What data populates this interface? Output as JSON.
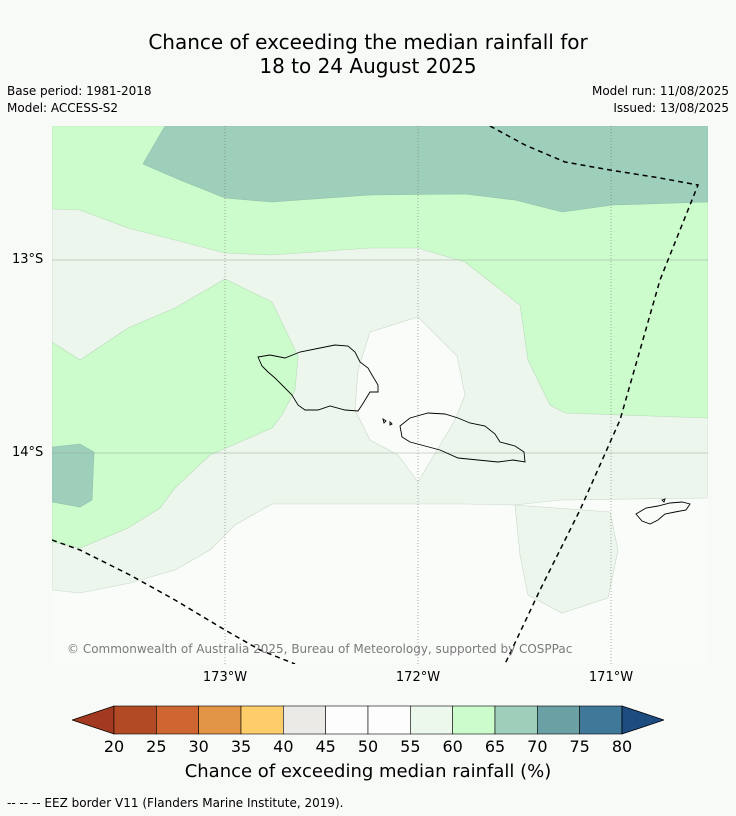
{
  "title": {
    "line1": "Chance of exceeding the median rainfall for",
    "line2": "18 to 24 August 2025"
  },
  "meta": {
    "base_period": "Base period: 1981-2018",
    "model": "Model: ACCESS-S2",
    "model_run": "Model run: 11/08/2025",
    "issued": "Issued: 13/08/2025"
  },
  "map": {
    "lat_labels": [
      "13°S",
      "14°S"
    ],
    "lon_labels": [
      "173°W",
      "172°W",
      "171°W"
    ],
    "copyright": "© Commonwealth of Australia 2025, Bureau of Meteorology, supported by COSPPac",
    "colors": {
      "c45_50": "#fafcfa",
      "c55_60": "#ecf6ec",
      "c60_65": "#ccfccc",
      "c65_70": "#9ecfbb",
      "coast": "#000000",
      "grid": "#777777"
    }
  },
  "colorbar": {
    "ticks": [
      "20",
      "25",
      "30",
      "35",
      "40",
      "45",
      "50",
      "55",
      "60",
      "65",
      "70",
      "75",
      "80"
    ],
    "colors": [
      "#a33920",
      "#b24a26",
      "#cf6632",
      "#e39546",
      "#fdcd6a",
      "#ebeae6",
      "#fdfdfd",
      "#fdfdfd",
      "#ecf8ec",
      "#ccfccc",
      "#9ecfbb",
      "#6ba1a4",
      "#3f7898",
      "#1c4c80"
    ],
    "label": "Chance of exceeding median rainfall (%)"
  },
  "footnote": "--  --  -- EEZ border V11 (Flanders Marine Institute, 2019)."
}
